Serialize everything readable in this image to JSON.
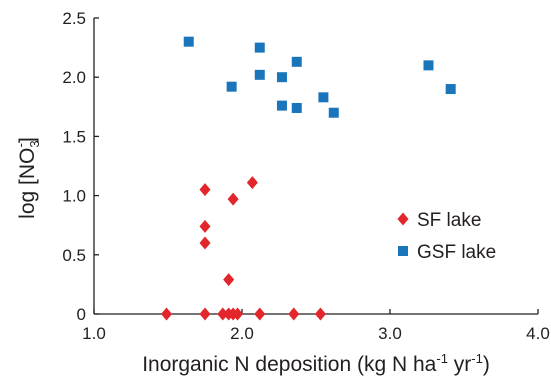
{
  "chart_data": {
    "type": "scatter",
    "title": "",
    "xlabel": {
      "main": "Inorganic N deposition (kg N ha",
      "sup1": "-1",
      "mid": " yr",
      "sup2": "-1",
      "end": ")"
    },
    "ylabel": {
      "main": "log [NO",
      "sub": "3",
      "sup": "-",
      "end": "]"
    },
    "xlim": [
      1.0,
      4.0
    ],
    "ylim": [
      0,
      2.5
    ],
    "x_ticks": [
      "1.0",
      "2.0",
      "3.0",
      "4.0"
    ],
    "y_ticks": [
      "0",
      "0.5",
      "1.0",
      "1.5",
      "2.0",
      "2.5"
    ],
    "grid": false,
    "legend_position": "center-right",
    "series": [
      {
        "name": "SF lake",
        "marker": "diamond",
        "color": "#e3262b",
        "points": [
          {
            "x": 1.49,
            "y": 0.0
          },
          {
            "x": 1.75,
            "y": 0.0
          },
          {
            "x": 1.87,
            "y": 0.0
          },
          {
            "x": 1.91,
            "y": 0.0
          },
          {
            "x": 1.94,
            "y": 0.0
          },
          {
            "x": 1.97,
            "y": 0.0
          },
          {
            "x": 2.12,
            "y": 0.0
          },
          {
            "x": 2.35,
            "y": 0.0
          },
          {
            "x": 2.53,
            "y": 0.0
          },
          {
            "x": 1.91,
            "y": 0.29
          },
          {
            "x": 1.75,
            "y": 0.6
          },
          {
            "x": 1.75,
            "y": 0.74
          },
          {
            "x": 1.94,
            "y": 0.97
          },
          {
            "x": 1.75,
            "y": 1.05
          },
          {
            "x": 2.07,
            "y": 1.11
          }
        ]
      },
      {
        "name": "GSF lake",
        "marker": "square",
        "color": "#1b75bb",
        "points": [
          {
            "x": 1.64,
            "y": 2.3
          },
          {
            "x": 1.93,
            "y": 1.92
          },
          {
            "x": 2.12,
            "y": 2.25
          },
          {
            "x": 2.12,
            "y": 2.02
          },
          {
            "x": 2.27,
            "y": 2.0
          },
          {
            "x": 2.27,
            "y": 1.76
          },
          {
            "x": 2.37,
            "y": 2.13
          },
          {
            "x": 2.37,
            "y": 1.74
          },
          {
            "x": 2.55,
            "y": 1.83
          },
          {
            "x": 2.62,
            "y": 1.7
          },
          {
            "x": 3.26,
            "y": 2.1
          },
          {
            "x": 3.41,
            "y": 1.9
          }
        ]
      }
    ]
  }
}
